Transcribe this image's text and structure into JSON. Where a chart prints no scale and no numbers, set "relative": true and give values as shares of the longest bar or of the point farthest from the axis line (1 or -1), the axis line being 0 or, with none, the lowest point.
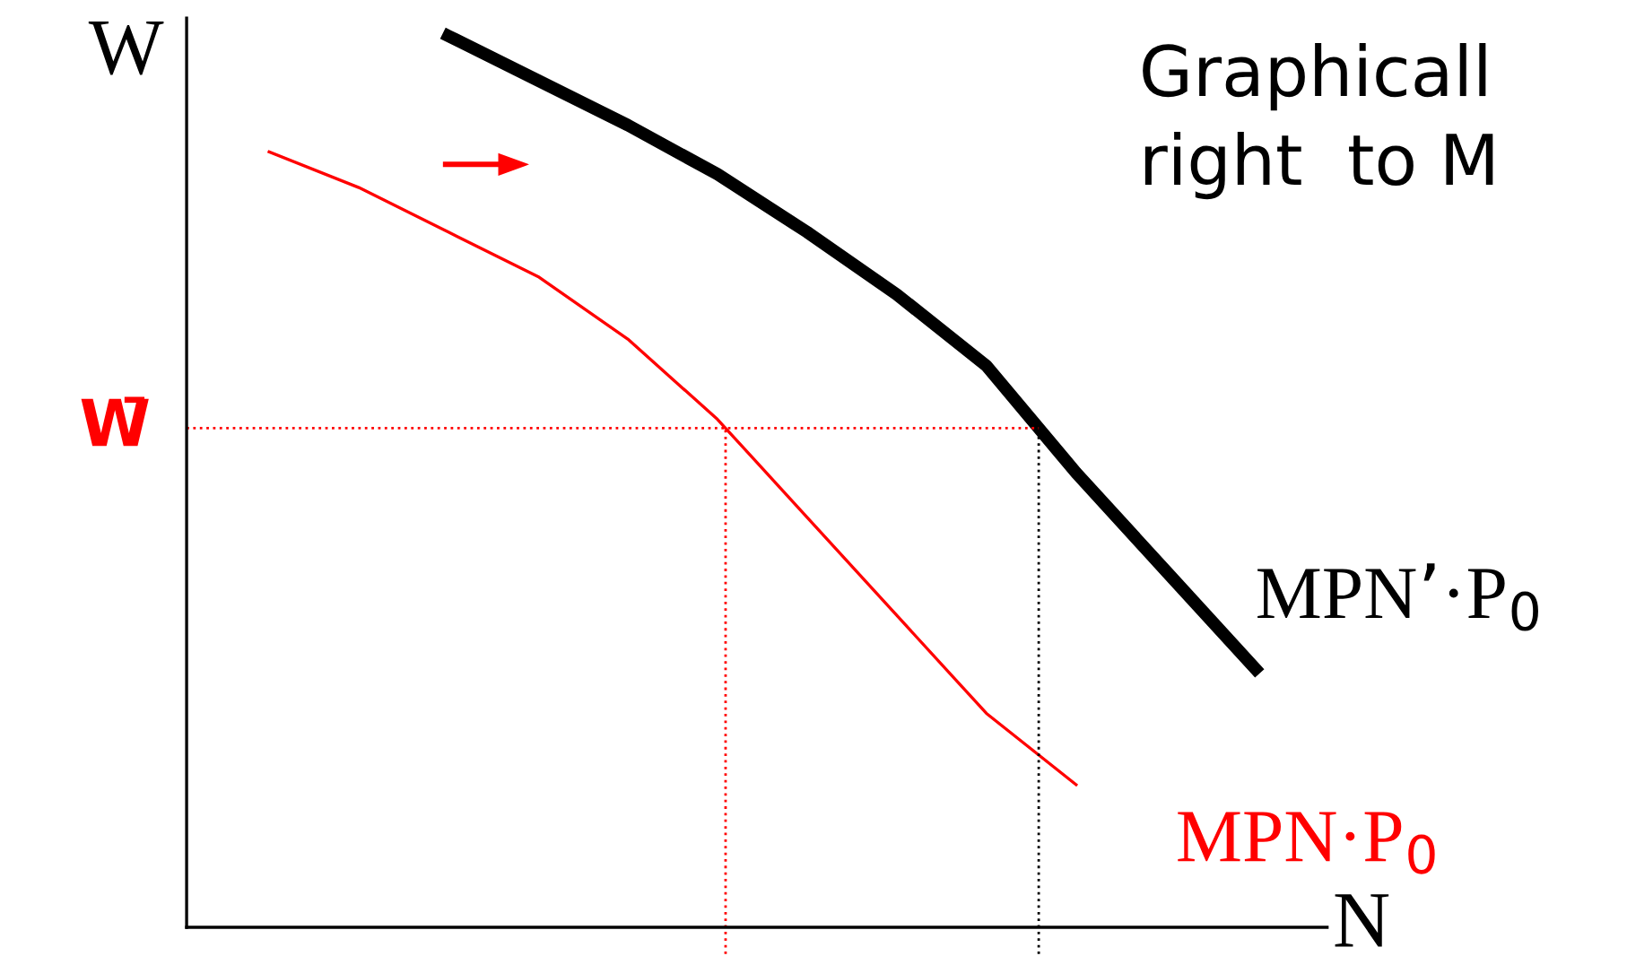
{
  "chart_data": {
    "type": "line",
    "relative": true,
    "xlabel": "N",
    "ylabel": "W",
    "annotations": [
      "Graphicall\nright  to M"
    ],
    "categories": [
      null,
      null,
      null,
      null,
      null,
      null,
      null,
      null,
      null,
      null,
      null,
      null
    ],
    "series": [
      {
        "name": "MPN’·P$_{0}$",
        "color": "#000000",
        "values": [
          null,
          null,
          1.0,
          0.95,
          0.9,
          0.845,
          0.78,
          0.71,
          0.63,
          0.51,
          0.4,
          0.29
        ]
      },
      {
        "name": "MPN·P$_{0}$",
        "color": "#ff0000",
        "values": [
          0.87,
          0.83,
          0.78,
          0.73,
          0.66,
          0.57,
          0.46,
          0.35,
          0.24,
          0.16,
          null,
          null
        ]
      }
    ],
    "ref_lines": [
      {
        "axis": "y",
        "value": 0.56,
        "label": "W̄",
        "color": "#ff0000",
        "line_style": "dotted"
      }
    ]
  }
}
